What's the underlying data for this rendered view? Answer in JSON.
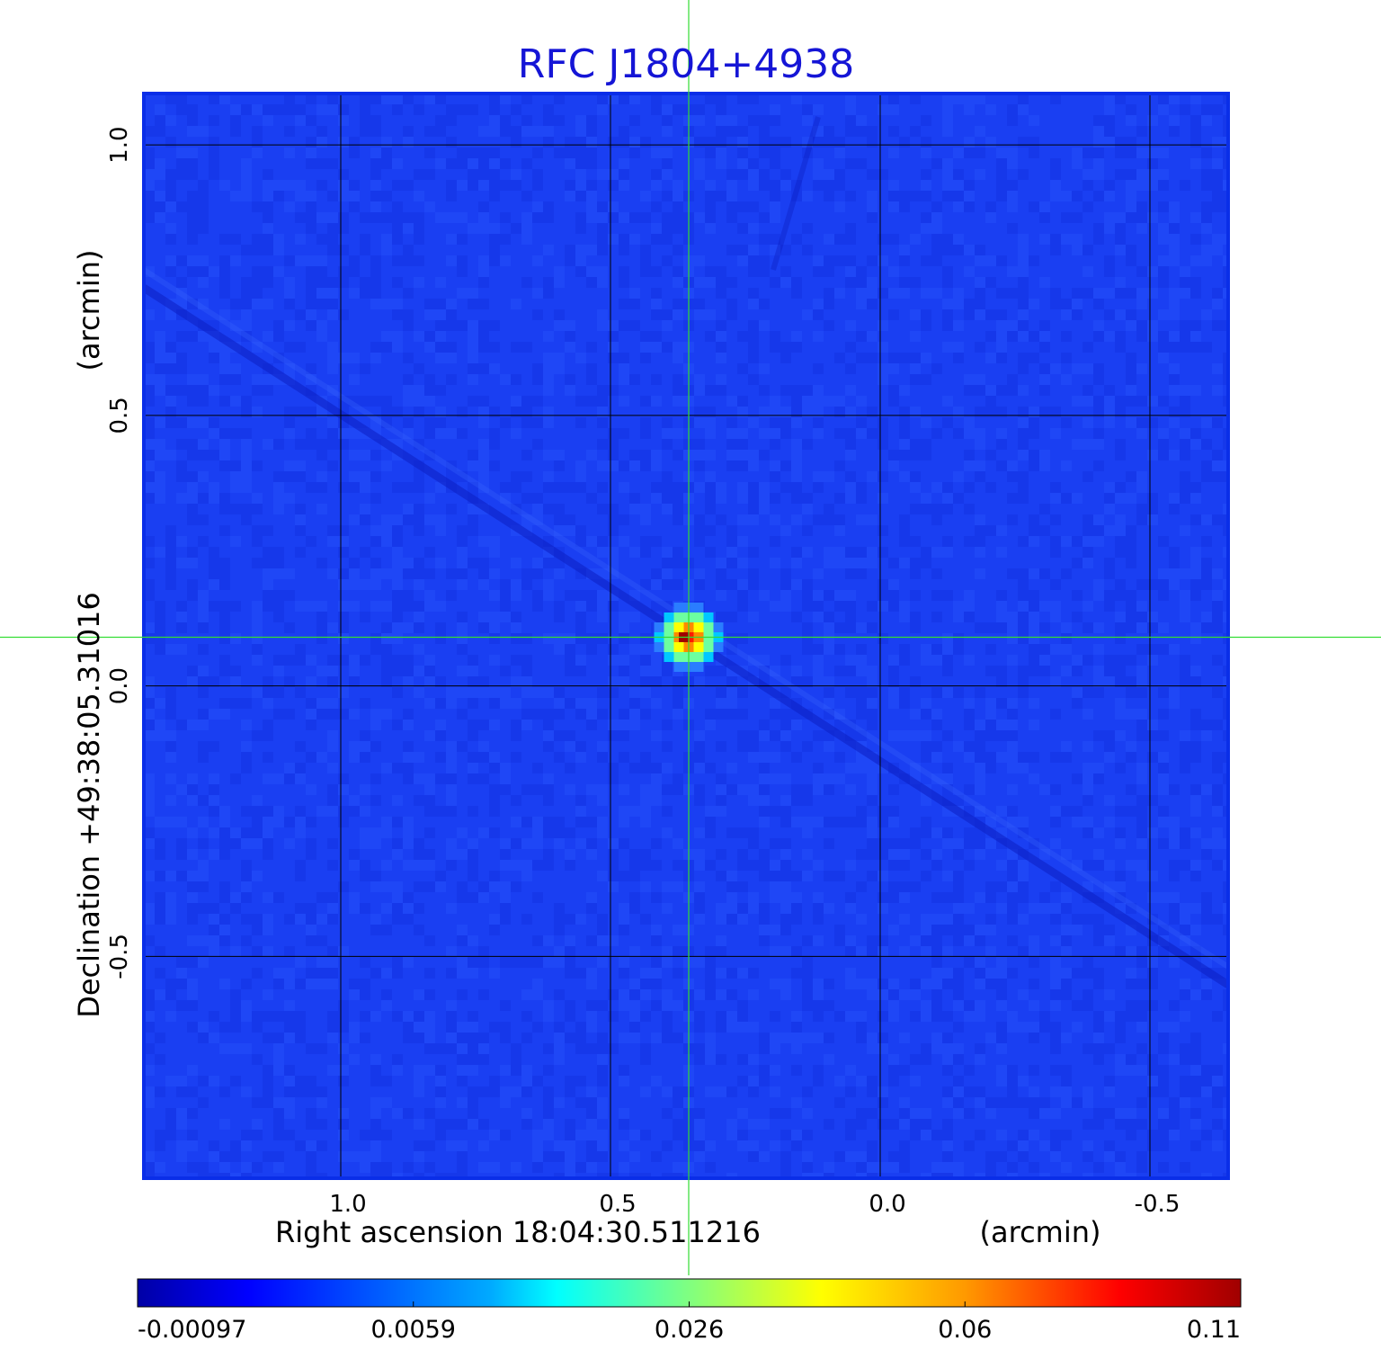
{
  "chart_data": {
    "type": "heatmap",
    "title": "RFC J1804+4938",
    "xlabel": "Right ascension  18:04:30.511216",
    "xunit": "(arcmin)",
    "ylabel": "Declination  +49:38:05.31016",
    "yunit": "(arcmin)",
    "xlim": [
      1.365,
      -0.645
    ],
    "ylim": [
      -0.91,
      1.095
    ],
    "xticks": [
      1.0,
      0.5,
      0.0,
      -0.5
    ],
    "xtick_labels": [
      "1.0",
      "0.5",
      "0.0",
      "-0.5"
    ],
    "yticks": [
      1.0,
      0.5,
      0.0,
      -0.5
    ],
    "ytick_labels": [
      "1.0",
      "0.5",
      "0.0",
      "-0.5"
    ],
    "grid": true,
    "crosshair": {
      "x": 0.355,
      "y": 0.09
    },
    "source": {
      "x": 0.355,
      "y": 0.09,
      "peak": 0.11
    },
    "colorbar": {
      "min": -0.00097,
      "max": 0.11,
      "tick_labels": [
        "-0.00097",
        "0.0059",
        "0.026",
        "0.06",
        "0.11"
      ],
      "colormap": "jet"
    },
    "colors": {
      "title": "#1515d6",
      "frame": "#0a2ee8",
      "background_field": "#1a3ff2",
      "crosshair": "#33dd33",
      "grid": "#000000"
    }
  }
}
